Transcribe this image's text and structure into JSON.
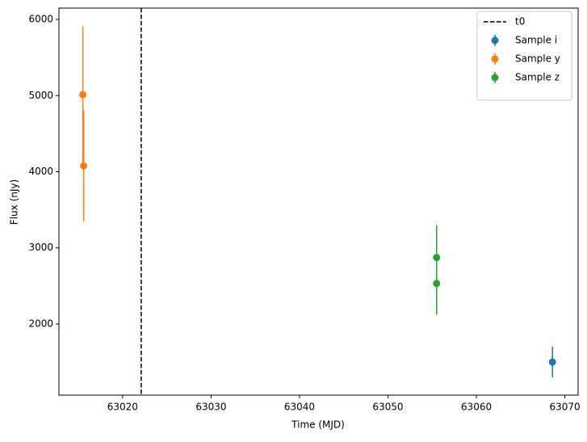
{
  "chart_data": {
    "type": "errorbar",
    "xlabel": "Time (MJD)",
    "ylabel": "Flux (nJy)",
    "xlim": [
      63012.8,
      63071.5
    ],
    "ylim": [
      1066,
      6149
    ],
    "xticks": [
      63020,
      63030,
      63040,
      63050,
      63060,
      63070
    ],
    "yticks": [
      2000,
      3000,
      4000,
      5000,
      6000
    ],
    "legend": "upper right",
    "vline": {
      "name": "t0",
      "x": 63022.1,
      "color": "#000000"
    },
    "series": [
      {
        "name": "Sample i",
        "color": "#1f77b4",
        "x": [
          63068.6
        ],
        "values": [
          1501
        ],
        "errors": [
          202
        ]
      },
      {
        "name": "Sample y",
        "color": "#ff7f0e",
        "x": [
          63015.5,
          63015.6
        ],
        "values": [
          5011,
          4076
        ],
        "errors": [
          902,
          730
        ]
      },
      {
        "name": "Sample z",
        "color": "#2ca02c",
        "x": [
          63055.5,
          63055.5
        ],
        "values": [
          2873,
          2533
        ],
        "errors": [
          425,
          410
        ]
      }
    ]
  }
}
